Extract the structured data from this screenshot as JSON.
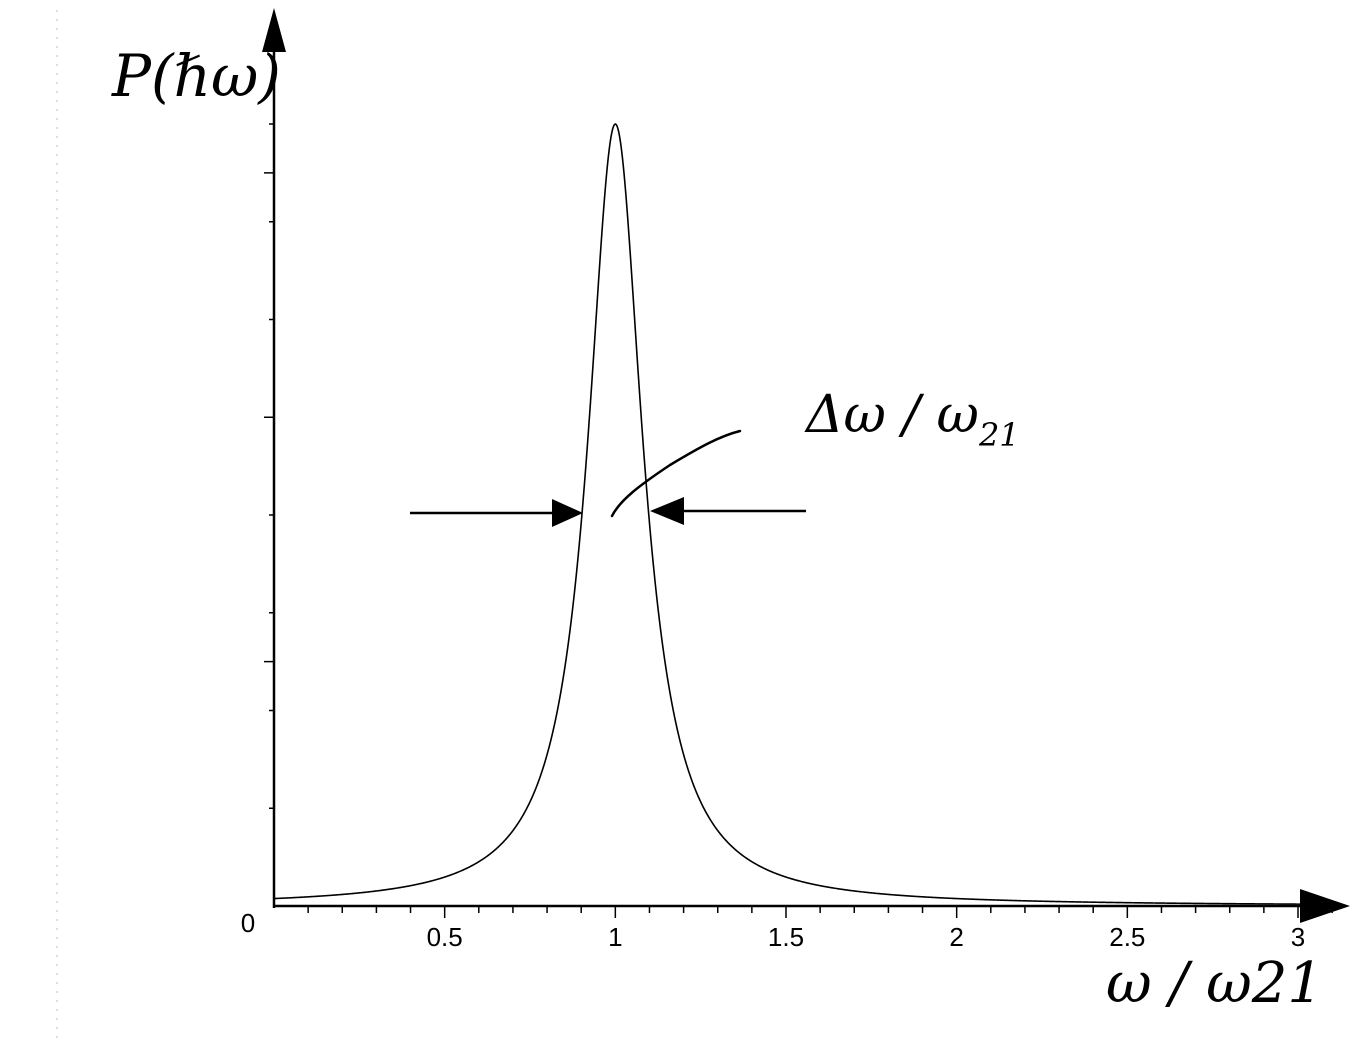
{
  "chart_data": {
    "type": "line",
    "ylabel": "P(ℏω)",
    "xlabel": "ω / ω21",
    "xlim": [
      0,
      3.1
    ],
    "ylim": [
      0,
      1.0
    ],
    "x_ticks": [
      0.5,
      1,
      1.5,
      2,
      2.5,
      3
    ],
    "x_tick_labels": [
      "0.5",
      "1",
      "1.5",
      "2",
      "2.5",
      "3"
    ],
    "origin_label": "0",
    "y_minor_ticks": [
      0.125,
      0.25,
      0.375,
      0.5,
      0.625,
      0.75,
      0.875,
      1.0
    ],
    "y_major_ticks": [
      0.3125,
      0.625,
      0.9375
    ],
    "series": [
      {
        "curve": "lorentzian",
        "center": 1.0,
        "gamma": 0.098,
        "peak": 1.0,
        "x": [
          0,
          0.25,
          0.5,
          0.7,
          0.8,
          0.9,
          0.95,
          1.0,
          1.05,
          1.1,
          1.2,
          1.3,
          1.5,
          2.0,
          2.5,
          3.0,
          3.1
        ],
        "y": [
          0.0096,
          0.0168,
          0.037,
          0.097,
          0.194,
          0.49,
          0.794,
          1.0,
          0.794,
          0.49,
          0.194,
          0.097,
          0.037,
          0.0096,
          0.0042,
          0.0024,
          0.0022
        ]
      }
    ],
    "annotation": {
      "text_main": "Δω / ω",
      "text_sub": "21",
      "half_max_level": 0.49
    }
  }
}
